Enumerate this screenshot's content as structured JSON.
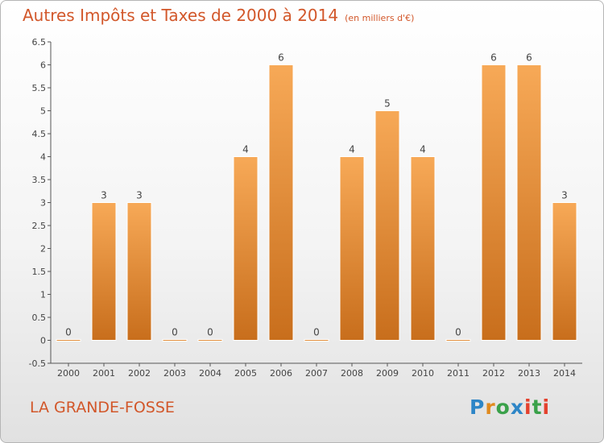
{
  "header": {
    "title": "Autres Impôts et Taxes de 2000 à 2014",
    "subtitle": "(en milliers d'€)"
  },
  "footer": {
    "commune": "LA GRANDE-FOSSE",
    "logo_text": "Proxiti"
  },
  "colors": {
    "accent": "#d2572a",
    "bar_light": "#f7a957",
    "bar_dark": "#c86e1c",
    "axis": "#555555"
  },
  "chart_data": {
    "type": "bar",
    "categories": [
      "2000",
      "2001",
      "2002",
      "2003",
      "2004",
      "2005",
      "2006",
      "2007",
      "2008",
      "2009",
      "2010",
      "2011",
      "2012",
      "2013",
      "2014"
    ],
    "values": [
      0,
      3,
      3,
      0,
      0,
      4,
      6,
      0,
      4,
      5,
      4,
      0,
      6,
      6,
      3
    ],
    "data_labels": [
      "0",
      "3",
      "3",
      "0",
      "0",
      "4",
      "6",
      "0",
      "4",
      "5",
      "4",
      "0",
      "6",
      "6",
      "3"
    ],
    "y_ticks": [
      "-0.5",
      "0",
      "0.5",
      "1",
      "1.5",
      "2",
      "2.5",
      "3",
      "3.5",
      "4",
      "4.5",
      "5",
      "5.5",
      "6",
      "6.5"
    ],
    "ylim": [
      -0.5,
      6.5
    ],
    "grid": false,
    "title": "Autres Impôts et Taxes de 2000 à 2014",
    "xlabel": "",
    "ylabel": ""
  }
}
